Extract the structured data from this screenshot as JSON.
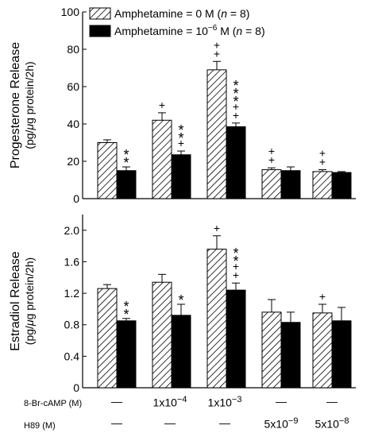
{
  "legend": {
    "items": [
      {
        "text_before": "Amphetamine = 0 M (",
        "italic": "n",
        "text_after": " = 8)",
        "fill": "hatched"
      },
      {
        "text_before": "Amphetamine = 10",
        "sup": "−6",
        "text_mid": " M (",
        "italic": "n",
        "text_after": " = 8)",
        "fill": "#000000"
      }
    ]
  },
  "conditions": {
    "row1_label": "8-Br-cAMP (M)",
    "row2_label": "H89 (M)",
    "row1_values": [
      {
        "text": "—"
      },
      {
        "base": "1x10",
        "exp": "−4"
      },
      {
        "base": "1x10",
        "exp": "−3"
      },
      {
        "text": "—"
      },
      {
        "text": "—"
      }
    ],
    "row2_values": [
      {
        "text": "—"
      },
      {
        "text": "—"
      },
      {
        "text": "—"
      },
      {
        "base": "5x10",
        "exp": "−9"
      },
      {
        "base": "5x10",
        "exp": "−8"
      }
    ]
  },
  "chart_data": [
    {
      "type": "bar",
      "ylabel_line1": "Progesterone Release",
      "ylabel_line2_parts": [
        "(pg/",
        "μ",
        "g protein/2h)"
      ],
      "ylim": [
        0,
        100
      ],
      "yticks": [
        0,
        20,
        40,
        60,
        80,
        100
      ],
      "ytick_labels": [
        "0",
        "20",
        "40",
        "60",
        "80",
        "100"
      ],
      "groups": 5,
      "series": [
        {
          "fill": "hatched",
          "values": [
            30,
            42,
            69,
            15.5,
            14.5
          ],
          "errors": [
            1.5,
            4,
            4.5,
            1,
            1
          ]
        },
        {
          "fill": "#000000",
          "values": [
            15,
            23.5,
            38.5,
            15,
            14
          ],
          "errors": [
            2,
            2,
            2,
            2,
            0.5
          ]
        }
      ],
      "annotations": [
        {
          "group": 0,
          "series": 1,
          "marks": "**"
        },
        {
          "group": 1,
          "series": 0,
          "marks": "+"
        },
        {
          "group": 1,
          "series": 1,
          "marks": "**+"
        },
        {
          "group": 2,
          "series": 0,
          "marks": "++"
        },
        {
          "group": 2,
          "series": 1,
          "marks": "***++"
        },
        {
          "group": 3,
          "series": 0,
          "marks": "++"
        },
        {
          "group": 4,
          "series": 0,
          "marks": "++"
        }
      ]
    },
    {
      "type": "bar",
      "ylabel_line1": "Estradiol Release",
      "ylabel_line2_parts": [
        "(pg/",
        "μ",
        "g protein/2h)"
      ],
      "ylim": [
        0,
        2.2
      ],
      "yticks": [
        0,
        0.4,
        0.8,
        1.2,
        1.6,
        2.0
      ],
      "ytick_labels": [
        "0",
        "0.4",
        "0.8",
        "1.2",
        "1.6",
        "2.0"
      ],
      "groups": 5,
      "series": [
        {
          "fill": "hatched",
          "values": [
            1.26,
            1.34,
            1.76,
            0.96,
            0.95
          ],
          "errors": [
            0.05,
            0.1,
            0.17,
            0.16,
            0.11
          ]
        },
        {
          "fill": "#000000",
          "values": [
            0.85,
            0.92,
            1.24,
            0.83,
            0.85
          ],
          "errors": [
            0.03,
            0.14,
            0.09,
            0.13,
            0.17
          ]
        }
      ],
      "annotations": [
        {
          "group": 0,
          "series": 1,
          "marks": "**"
        },
        {
          "group": 1,
          "series": 1,
          "marks": "*"
        },
        {
          "group": 2,
          "series": 0,
          "marks": "+"
        },
        {
          "group": 2,
          "series": 1,
          "marks": "**++"
        },
        {
          "group": 4,
          "series": 0,
          "marks": "+"
        }
      ]
    }
  ]
}
